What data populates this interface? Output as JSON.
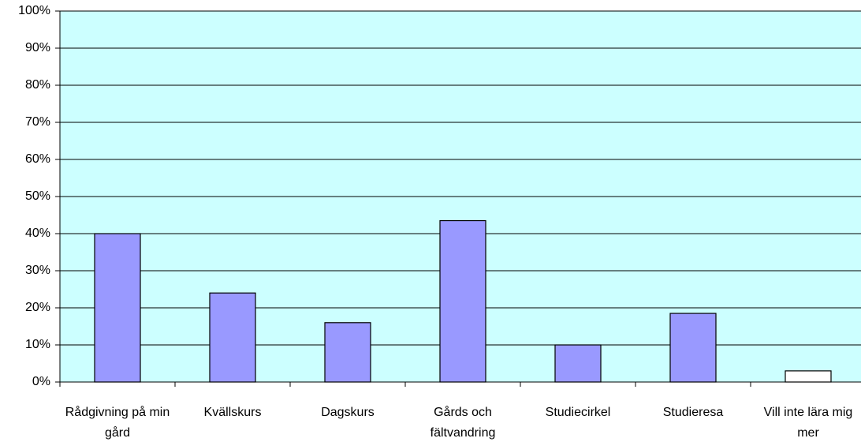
{
  "chart_data": {
    "type": "bar",
    "categories": [
      "Rådgivning på min gård",
      "Kvällskurs",
      "Dagskurs",
      "Gårds och fältvandring",
      "Studiecirkel",
      "Studieresa",
      "Vill inte lära mig mer"
    ],
    "values": [
      40,
      24,
      16,
      43.5,
      10,
      18.5,
      3
    ],
    "colors": [
      "#9999ff",
      "#9999ff",
      "#9999ff",
      "#9999ff",
      "#9999ff",
      "#9999ff",
      "#ffffff"
    ],
    "ylim": [
      0,
      100
    ],
    "yticks": [
      {
        "value": 0,
        "label": "0%"
      },
      {
        "value": 10,
        "label": "10%"
      },
      {
        "value": 20,
        "label": "20%"
      },
      {
        "value": 30,
        "label": "30%"
      },
      {
        "value": 40,
        "label": "40%"
      },
      {
        "value": 50,
        "label": "50%"
      },
      {
        "value": 60,
        "label": "60%"
      },
      {
        "value": 70,
        "label": "70%"
      },
      {
        "value": 80,
        "label": "80%"
      },
      {
        "value": 90,
        "label": "90%"
      },
      {
        "value": 100,
        "label": "100%"
      }
    ],
    "grid": true
  }
}
